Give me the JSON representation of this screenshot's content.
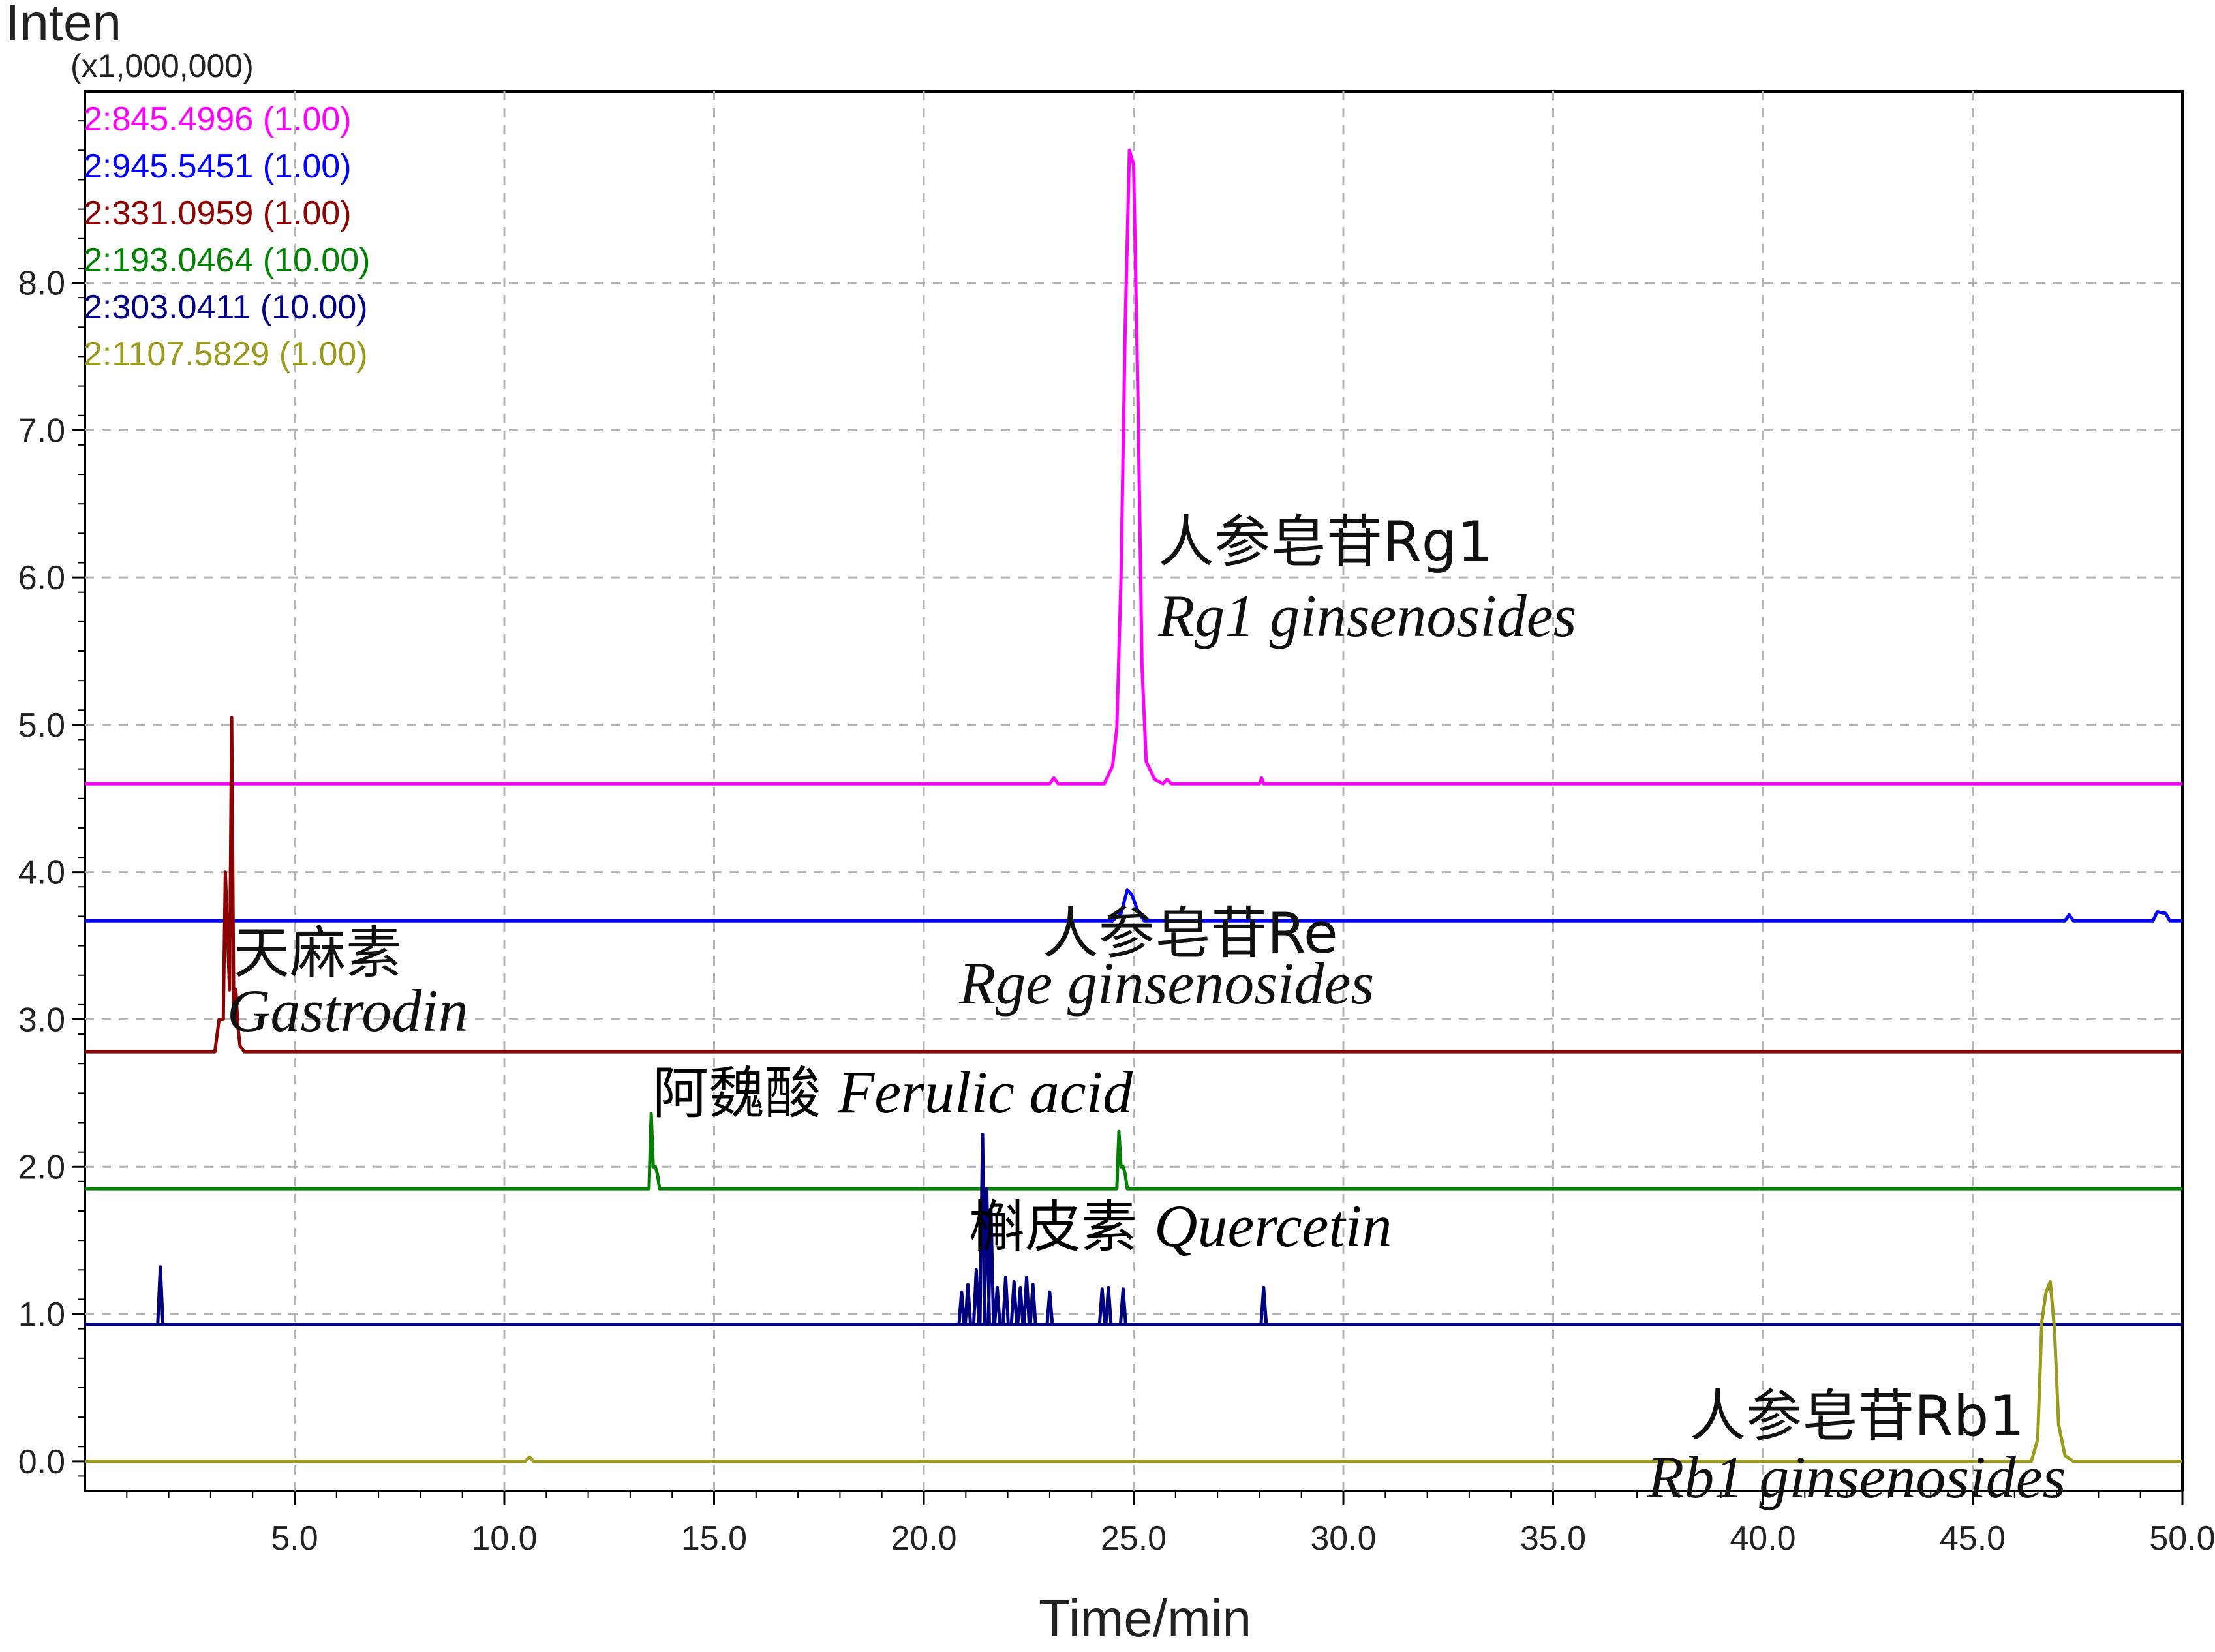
{
  "chart_data": {
    "type": "line",
    "ylabel": "Inten",
    "yscale_label": "(x1,000,000)",
    "xlabel": "Time/min",
    "xlim": [
      0,
      50
    ],
    "ylim": [
      -0.2,
      9.3
    ],
    "x_ticks": [
      "5.0",
      "10.0",
      "15.0",
      "20.0",
      "25.0",
      "30.0",
      "35.0",
      "40.0",
      "45.0",
      "50.0"
    ],
    "y_ticks": [
      "0.0",
      "1.0",
      "2.0",
      "3.0",
      "4.0",
      "5.0",
      "6.0",
      "7.0",
      "8.0"
    ],
    "grid": true,
    "legend_position": "top-left",
    "series": [
      {
        "name": "2:845.4996 (1.00)",
        "color": "#ff00ff",
        "baseline": 4.6,
        "x": [
          0,
          23.0,
          23.1,
          23.2,
          24.3,
          24.5,
          24.6,
          24.7,
          24.8,
          24.9,
          25.0,
          25.1,
          25.2,
          25.3,
          25.5,
          25.7,
          25.8,
          25.9,
          28.0,
          28.05,
          28.1,
          50
        ],
        "y": [
          4.6,
          4.6,
          4.64,
          4.6,
          4.6,
          4.72,
          4.98,
          6.0,
          7.7,
          8.9,
          8.8,
          7.3,
          5.4,
          4.75,
          4.63,
          4.6,
          4.63,
          4.6,
          4.6,
          4.64,
          4.6,
          4.6
        ]
      },
      {
        "name": "2:945.5451 (1.00)",
        "color": "#0000ff",
        "baseline": 3.67,
        "x": [
          0,
          24.5,
          24.7,
          24.85,
          24.95,
          25.1,
          25.25,
          47.2,
          47.3,
          47.4,
          49.3,
          49.4,
          49.6,
          49.7,
          50
        ],
        "y": [
          3.67,
          3.67,
          3.72,
          3.88,
          3.85,
          3.74,
          3.67,
          3.67,
          3.71,
          3.67,
          3.67,
          3.73,
          3.72,
          3.67,
          3.67
        ]
      },
      {
        "name": "2:331.0959 (1.00)",
        "color": "#8b0000",
        "baseline": 2.78,
        "x": [
          0,
          3.1,
          3.2,
          3.3,
          3.35,
          3.45,
          3.5,
          3.55,
          3.6,
          3.65,
          3.7,
          3.8,
          50
        ],
        "y": [
          2.78,
          2.78,
          3.0,
          3.0,
          4.0,
          3.2,
          5.05,
          3.05,
          3.2,
          2.95,
          2.82,
          2.78,
          2.78
        ]
      },
      {
        "name": "2:193.0464 (10.00)",
        "color": "#008000",
        "baseline": 1.85,
        "x": [
          0,
          13.45,
          13.5,
          13.55,
          13.6,
          13.65,
          13.7,
          24.6,
          24.65,
          24.7,
          24.75,
          24.8,
          24.85,
          50
        ],
        "y": [
          1.85,
          1.85,
          2.36,
          2.0,
          2.0,
          1.95,
          1.85,
          1.85,
          2.24,
          2.0,
          2.0,
          1.95,
          1.85,
          1.85
        ]
      },
      {
        "name": "2:303.0411 (10.00)",
        "color": "#000080",
        "baseline": 0.93,
        "spikes": [
          [
            1.8,
            1.32
          ],
          [
            20.9,
            1.15
          ],
          [
            21.05,
            1.2
          ],
          [
            21.25,
            1.3
          ],
          [
            21.4,
            2.22
          ],
          [
            21.5,
            1.85
          ],
          [
            21.6,
            1.7
          ],
          [
            21.75,
            1.18
          ],
          [
            21.95,
            1.25
          ],
          [
            22.15,
            1.22
          ],
          [
            22.3,
            1.18
          ],
          [
            22.45,
            1.25
          ],
          [
            22.6,
            1.2
          ],
          [
            23.0,
            1.15
          ],
          [
            24.25,
            1.17
          ],
          [
            24.4,
            1.18
          ],
          [
            24.75,
            1.17
          ],
          [
            28.1,
            1.18
          ]
        ]
      },
      {
        "name": "2:1107.5829 (1.00)",
        "color": "#9a9a1e",
        "baseline": 0.0,
        "x": [
          0,
          10.5,
          10.6,
          10.7,
          46.4,
          46.55,
          46.65,
          46.75,
          46.85,
          46.95,
          47.05,
          47.2,
          47.4,
          50
        ],
        "y": [
          0.0,
          0.0,
          0.03,
          0.0,
          0.0,
          0.15,
          0.95,
          1.15,
          1.22,
          0.9,
          0.25,
          0.04,
          0.0,
          0.0
        ]
      }
    ],
    "annotations": [
      {
        "cn": "人参皂苷Rg1",
        "en": "Rg1 ginsenosides"
      },
      {
        "cn": "天麻素",
        "en": "Gastrodin"
      },
      {
        "cn": "人参皂苷Re",
        "en": "Rge ginsenosides"
      },
      {
        "cn": "阿魏酸",
        "en": "Ferulic acid"
      },
      {
        "cn": "槲皮素",
        "en": "Quercetin"
      },
      {
        "cn": "人参皂苷Rb1",
        "en": "Rb1 ginsenosides"
      }
    ]
  }
}
